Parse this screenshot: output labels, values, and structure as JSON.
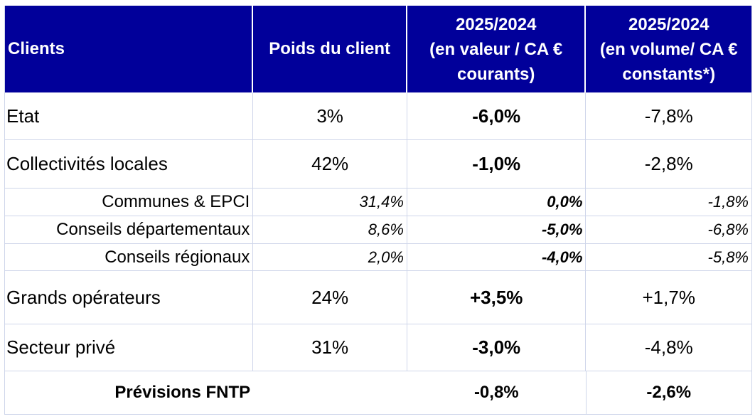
{
  "table": {
    "headers": {
      "clients": "Clients",
      "poids": "Poids du client",
      "valeur": [
        "2025/2024",
        "(en valeur / CA €",
        "courants)"
      ],
      "volume": [
        "2025/2024",
        "(en volume/ CA €",
        "constants*)"
      ]
    },
    "rows": [
      {
        "client": "Etat",
        "poids": "3%",
        "valeur": "-6,0%",
        "volume": "-7,8%"
      },
      {
        "client": "Collectivités locales",
        "poids": "42%",
        "valeur": "-1,0%",
        "volume": "-2,8%"
      },
      {
        "client": "Communes & EPCI",
        "poids": "31,4%",
        "valeur": "0,0%",
        "volume": "-1,8%"
      },
      {
        "client": "Conseils départementaux",
        "poids": "8,6%",
        "valeur": "-5,0%",
        "volume": "-6,8%"
      },
      {
        "client": "Conseils régionaux",
        "poids": "2,0%",
        "valeur": "-4,0%",
        "volume": "-5,8%"
      },
      {
        "client": "Grands opérateurs",
        "poids": "24%",
        "valeur": "+3,5%",
        "volume": "+1,7%"
      },
      {
        "client": "Secteur privé",
        "poids": "31%",
        "valeur": "-3,0%",
        "volume": "-4,8%"
      }
    ],
    "total": {
      "label": "Prévisions FNTP",
      "valeur": "-0,8%",
      "volume": "-2,6%"
    }
  },
  "colors": {
    "header_bg": "#01009a",
    "header_text": "#ffffff",
    "grid": "#cfd6ea"
  }
}
